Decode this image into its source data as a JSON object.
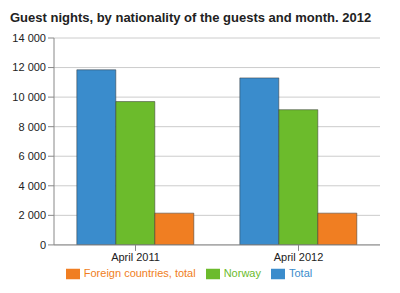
{
  "chart_data": {
    "type": "bar",
    "title": "Guest nights, by nationality of the guests and month. 2012",
    "categories": [
      "April 2011",
      "April 2012"
    ],
    "series": [
      {
        "name": "Total",
        "color": "#3a8ccc",
        "values": [
          11850,
          11300
        ]
      },
      {
        "name": "Norway",
        "color": "#6cbb2c",
        "values": [
          9700,
          9150
        ]
      },
      {
        "name": "Foreign countries, total",
        "color": "#f07e22",
        "values": [
          2150,
          2150
        ]
      }
    ],
    "ylim": [
      0,
      14000
    ],
    "yticks": [
      0,
      {
        "value": 2000,
        "label": "2 000"
      },
      {
        "value": 4000,
        "label": "4 000"
      },
      {
        "value": 6000,
        "label": "6 000"
      },
      {
        "value": 8000,
        "label": "8 000"
      },
      {
        "value": 10000,
        "label": "10 000"
      },
      {
        "value": 12000,
        "label": "12 000"
      },
      {
        "value": 14000,
        "label": "14 000"
      }
    ],
    "grid": true,
    "legend": "bottom"
  }
}
